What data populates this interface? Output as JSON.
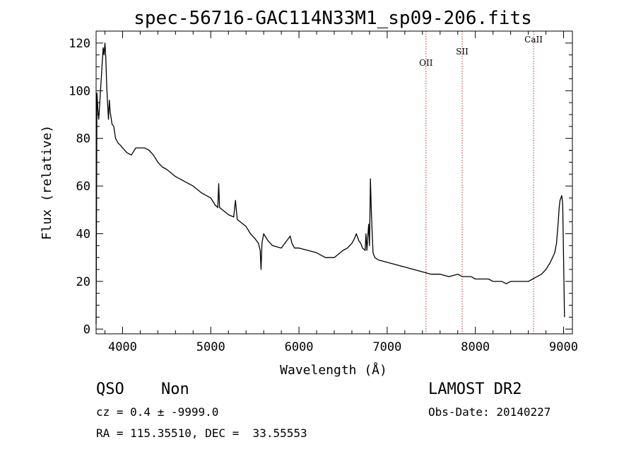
{
  "chart_data": {
    "type": "line",
    "title": "spec-56716-GAC114N33M1_sp09-206.fits",
    "xlabel": "Wavelength (Å)",
    "ylabel": "Flux (relative)",
    "xlim": [
      3700,
      9100
    ],
    "ylim": [
      -2,
      125
    ],
    "x_ticks": [
      4000,
      5000,
      6000,
      7000,
      8000,
      9000
    ],
    "y_ticks": [
      0,
      20,
      40,
      60,
      80,
      100,
      120
    ],
    "lines": [
      {
        "label": "OII",
        "x": 7440
      },
      {
        "label": "SII",
        "x": 7850
      },
      {
        "label": "CaII",
        "x": 8660
      }
    ],
    "line_color": "#b03030",
    "series": [
      {
        "x": [
          3700,
          3710,
          3720,
          3730,
          3740,
          3750,
          3760,
          3770,
          3780,
          3790,
          3800,
          3810,
          3820,
          3830,
          3840,
          3850,
          3860,
          3880,
          3900,
          3920,
          3950,
          3980,
          4000,
          4050,
          4100,
          4150,
          4200,
          4250,
          4300,
          4350,
          4400,
          4450,
          4500,
          4600,
          4700,
          4800,
          4900,
          5000,
          5050,
          5080,
          5090,
          5100,
          5200,
          5260,
          5280,
          5300,
          5400,
          5450,
          5500,
          5540,
          5560,
          5570,
          5580,
          5600,
          5650,
          5700,
          5800,
          5880,
          5900,
          5920,
          5950,
          6000,
          6100,
          6200,
          6300,
          6400,
          6500,
          6550,
          6600,
          6630,
          6650,
          6680,
          6700,
          6720,
          6750,
          6760,
          6770,
          6790,
          6800,
          6810,
          6820,
          6830,
          6840,
          6860,
          6900,
          7000,
          7100,
          7200,
          7300,
          7400,
          7500,
          7600,
          7700,
          7800,
          7850,
          7900,
          7950,
          8000,
          8050,
          8100,
          8150,
          8200,
          8300,
          8350,
          8400,
          8450,
          8500,
          8550,
          8600,
          8650,
          8700,
          8750,
          8800,
          8850,
          8900,
          8920,
          8940,
          8950,
          8960,
          8980,
          8990,
          9000,
          9010
        ],
        "y": [
          2,
          99,
          92,
          88,
          94,
          100,
          106,
          112,
          118,
          115,
          120,
          114,
          102,
          95,
          88,
          96,
          91,
          86,
          85,
          80,
          78,
          77,
          76,
          74,
          73,
          76,
          76,
          76,
          75,
          73,
          70,
          68,
          67,
          64,
          62,
          60,
          57,
          55,
          52,
          51,
          61,
          51,
          48,
          47,
          54,
          46,
          43,
          40,
          38,
          36,
          33,
          25,
          36,
          40,
          37,
          35,
          34,
          38,
          39,
          36,
          34,
          34,
          33,
          32,
          30,
          30,
          33,
          34,
          36,
          38,
          40,
          37,
          36,
          34,
          33,
          40,
          33,
          44,
          35,
          63,
          50,
          40,
          32,
          30,
          29,
          28,
          27,
          26,
          25,
          24,
          23,
          23,
          22,
          23,
          22,
          22,
          22,
          21,
          21,
          21,
          21,
          20,
          20,
          19,
          20,
          20,
          20,
          20,
          20,
          21,
          22,
          23,
          25,
          28,
          32,
          36,
          45,
          51,
          54,
          56,
          52,
          30,
          5
        ]
      }
    ]
  },
  "info": {
    "class": "QSO",
    "subclass": "Non",
    "survey": "LAMOST DR2",
    "cz": "cz = 0.4 ± -9999.0",
    "obs_date": "Obs-Date: 20140227",
    "coords": "RA = 115.35510, DEC =  33.55553"
  }
}
